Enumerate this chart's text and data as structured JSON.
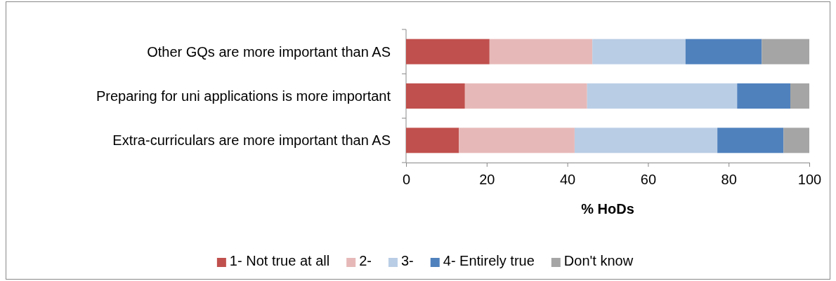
{
  "chart_data": {
    "type": "bar",
    "orientation": "horizontal",
    "stacked": true,
    "xlabel": "% HoDs",
    "categories": [
      "Other GQs are more important than AS",
      "Preparing for uni applications is more important",
      "Extra-curriculars are more important than AS"
    ],
    "series": [
      {
        "name": "1- Not true at all",
        "color": "#c0504d",
        "values": [
          20.7,
          14.6,
          13.1
        ]
      },
      {
        "name": "2-",
        "color": "#e6b9b8",
        "values": [
          25.5,
          30.3,
          28.7
        ]
      },
      {
        "name": "3-",
        "color": "#b9cde5",
        "values": [
          23.1,
          37.2,
          35.4
        ]
      },
      {
        "name": "4- Entirely true",
        "color": "#4f81bd",
        "values": [
          18.9,
          13.2,
          16.4
        ]
      },
      {
        "name": "Don't know",
        "color": "#a5a5a5",
        "values": [
          11.8,
          4.7,
          6.4
        ]
      }
    ],
    "xlim": [
      0,
      100
    ],
    "xticks": [
      0,
      20,
      40,
      60,
      80,
      100
    ],
    "grid": false,
    "legend": "bottom"
  }
}
